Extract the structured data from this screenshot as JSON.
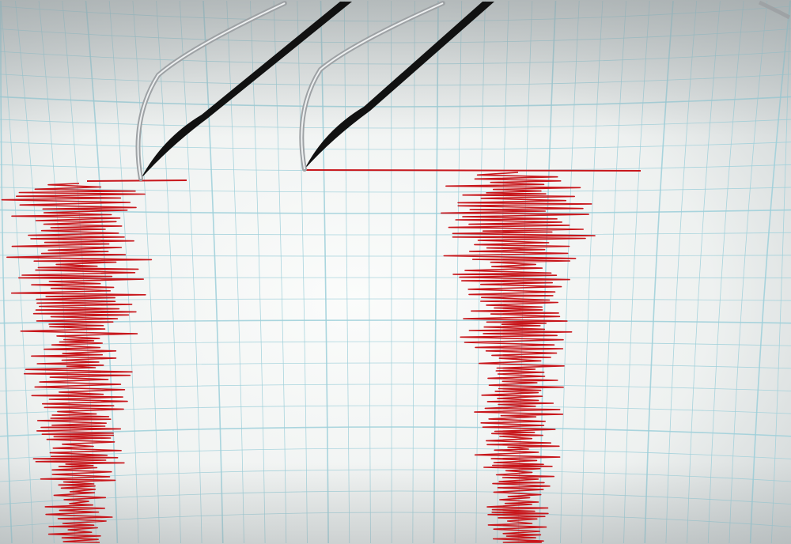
{
  "scene": {
    "subject": "seismograph",
    "colors": {
      "paper": "#f4f6f5",
      "paper_edge": "#c9cfd0",
      "grid": "#9ccfd9",
      "trace": "#c8161b",
      "needle": "#b9bcbf",
      "shadow": "#111111"
    },
    "traces": [
      {
        "name": "left-trace",
        "amplitude_profile": "decaying"
      },
      {
        "name": "right-trace",
        "amplitude_profile": "decaying"
      }
    ]
  }
}
